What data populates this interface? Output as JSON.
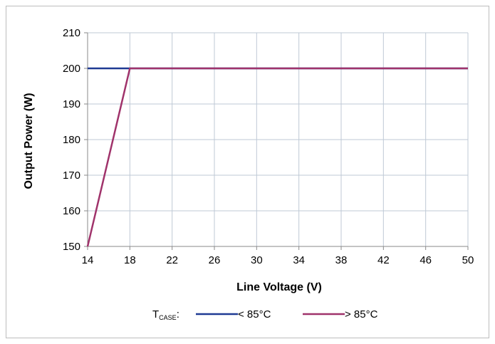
{
  "chart_data": {
    "type": "line",
    "xlabel": "Line Voltage (V)",
    "ylabel": "Output Power (W)",
    "xlim": [
      14,
      50
    ],
    "ylim": [
      150,
      210
    ],
    "x_ticks": [
      14,
      18,
      22,
      26,
      30,
      34,
      38,
      42,
      46,
      50
    ],
    "y_ticks": [
      150,
      160,
      170,
      180,
      190,
      200,
      210
    ],
    "grid": true,
    "legend_position": "bottom",
    "legend_prefix": "T",
    "legend_prefix_sub": "CASE",
    "legend_prefix_suffix": ":",
    "series": [
      {
        "name": "< 85°C",
        "color": "#1f3a93",
        "x": [
          14,
          18,
          50
        ],
        "y": [
          200,
          200,
          200
        ]
      },
      {
        "name": "> 85°C",
        "color": "#a0336b",
        "x": [
          14,
          18,
          50
        ],
        "y": [
          150,
          200,
          200
        ]
      }
    ]
  }
}
